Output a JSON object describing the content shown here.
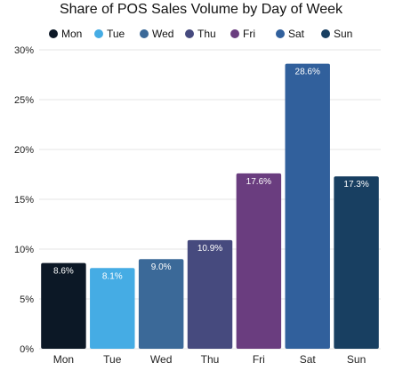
{
  "chart_data": {
    "type": "bar",
    "title": "Share of POS Sales Volume by Day of Week",
    "categories": [
      "Mon",
      "Tue",
      "Wed",
      "Thu",
      "Fri",
      "Sat",
      "Sun"
    ],
    "values": [
      8.6,
      8.1,
      9.0,
      10.9,
      17.6,
      28.6,
      17.3
    ],
    "data_labels": [
      "8.6%",
      "8.1%",
      "9.0%",
      "10.9%",
      "17.6%",
      "28.6%",
      "17.3%"
    ],
    "colors": [
      "#0c1826",
      "#45ace4",
      "#3b6998",
      "#464a7e",
      "#6a3d7f",
      "#31609c",
      "#183f61"
    ],
    "y_ticks": [
      0,
      5,
      10,
      15,
      20,
      25,
      30
    ],
    "y_tick_labels": [
      "0%",
      "5%",
      "10%",
      "15%",
      "20%",
      "25%",
      "30%"
    ],
    "ylim": [
      0,
      30
    ],
    "legend": {
      "placement": "top",
      "entries": [
        "Mon",
        "Tue",
        "Wed",
        "Thu",
        "Fri",
        "Sat",
        "Sun"
      ]
    },
    "grid": true
  }
}
